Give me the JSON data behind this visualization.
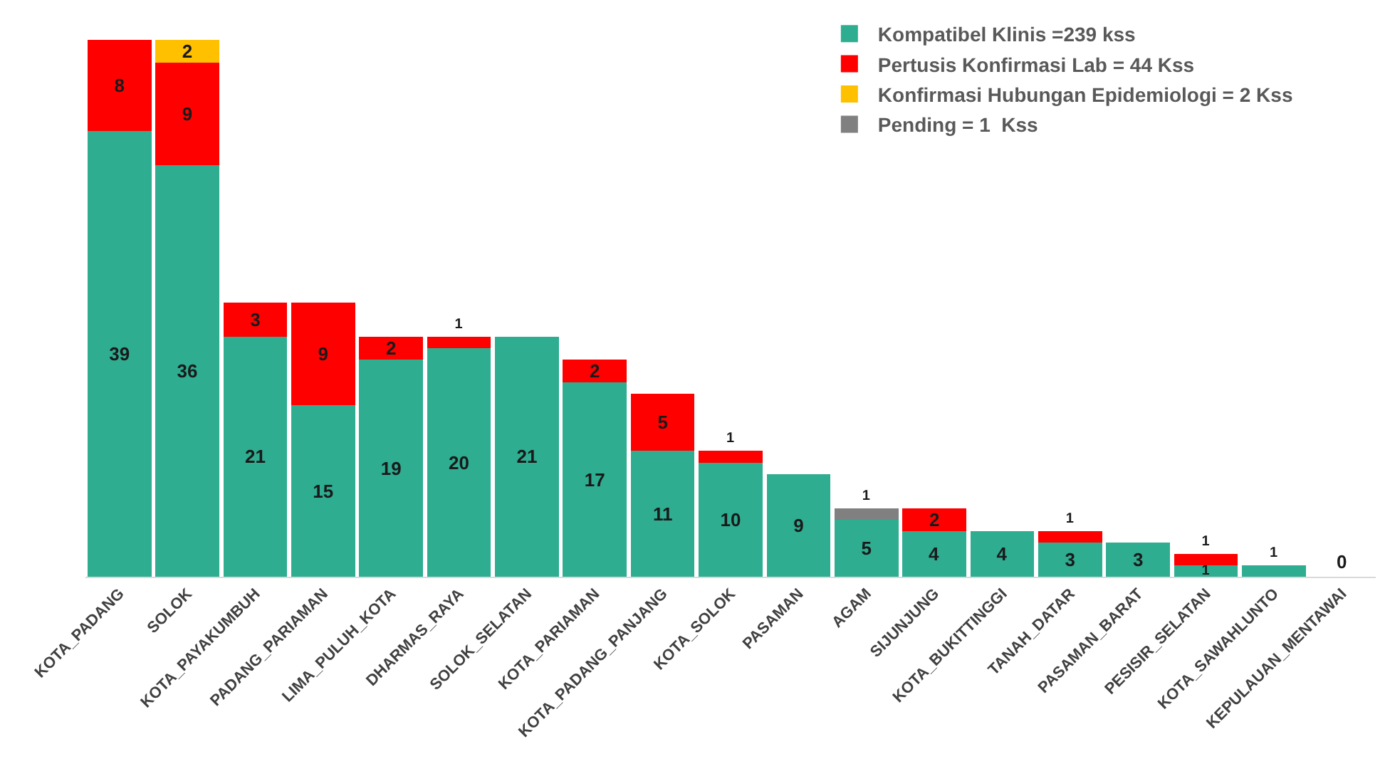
{
  "chart_data": {
    "type": "bar",
    "stacked": true,
    "data_labels": true,
    "legend": "top right",
    "categories": [
      "KOTA_PADANG",
      "SOLOK",
      "KOTA_PAYAKUMBUH",
      "PADANG_PARIAMAN",
      "LIMA_PULUH_KOTA",
      "DHARMAS_RAYA",
      "SOLOK_SELATAN",
      "KOTA_PARIAMAN",
      "KOTA_PADANG_PANJANG",
      "KOTA_SOLOK",
      "PASAMAN",
      "AGAM",
      "SIJUNJUNG",
      "KOTA_BUKITTINGGI",
      "TANAH_DATAR",
      "PASAMAN_BARAT",
      "PESISIR_SELATAN",
      "KOTA_SAWAHLUNTO",
      "KEPULAUAN_MENTAWAI"
    ],
    "series": [
      {
        "name": "Kompatibel Klinis =239 kss",
        "color": "#2ead91",
        "values": [
          39,
          36,
          21,
          15,
          19,
          20,
          21,
          17,
          11,
          10,
          9,
          5,
          4,
          4,
          3,
          3,
          1,
          1,
          0
        ]
      },
      {
        "name": "Pertusis Konfirmasi Lab = 44 Kss",
        "color": "#ff0000",
        "values": [
          8,
          9,
          3,
          9,
          2,
          1,
          null,
          2,
          5,
          1,
          null,
          null,
          2,
          null,
          1,
          null,
          1,
          null,
          null
        ]
      },
      {
        "name": "Konfirmasi Hubungan Epidemiologi = 2 Kss",
        "color": "#ffc000",
        "values": [
          null,
          2,
          null,
          null,
          null,
          null,
          null,
          null,
          null,
          null,
          null,
          null,
          null,
          null,
          null,
          null,
          null,
          null,
          null
        ]
      },
      {
        "name": "Pending = 1  Kss",
        "color": "#808080",
        "values": [
          null,
          null,
          null,
          null,
          null,
          null,
          null,
          null,
          null,
          null,
          null,
          1,
          null,
          null,
          null,
          null,
          null,
          null,
          null
        ]
      }
    ]
  }
}
